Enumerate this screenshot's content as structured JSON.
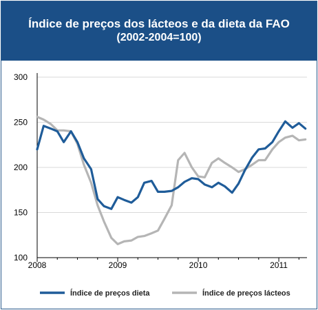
{
  "header": {
    "title": "Índice de preços dos lácteos e da dieta da FAO",
    "subtitle": "(2002-2004=100)"
  },
  "colors": {
    "header_bg": "#1b4f87",
    "diet": "#1f5c99",
    "dairy": "#b5b5b5"
  },
  "chart_data": {
    "type": "line",
    "title": "Índice de preços dos lácteos e da dieta da FAO",
    "subtitle": "(2002-2004=100)",
    "x_tick_labels": [
      "2008",
      "2009",
      "2010",
      "2011"
    ],
    "y_tick_labels": [
      "100",
      "150",
      "200",
      "250",
      "300"
    ],
    "x_unit": "year (fractional)",
    "xlim": [
      2008.0,
      2011.35
    ],
    "ylim": [
      100,
      300
    ],
    "grid": "horizontal",
    "legend_position": "bottom",
    "series": [
      {
        "name": "Índice de preços dieta",
        "color": "#1f5c99",
        "x": [
          2008.0,
          2008.08,
          2008.17,
          2008.25,
          2008.33,
          2008.42,
          2008.5,
          2008.58,
          2008.67,
          2008.75,
          2008.83,
          2008.92,
          2009.0,
          2009.08,
          2009.17,
          2009.25,
          2009.33,
          2009.42,
          2009.5,
          2009.58,
          2009.67,
          2009.75,
          2009.83,
          2009.92,
          2010.0,
          2010.08,
          2010.17,
          2010.25,
          2010.33,
          2010.42,
          2010.5,
          2010.58,
          2010.67,
          2010.75,
          2010.83,
          2010.92,
          2011.0,
          2011.08,
          2011.17,
          2011.25,
          2011.33
        ],
        "values": [
          220,
          246,
          243,
          240,
          228,
          240,
          228,
          210,
          198,
          165,
          157,
          154,
          167,
          164,
          161,
          167,
          183,
          185,
          173,
          173,
          174,
          178,
          184,
          188,
          187,
          181,
          178,
          183,
          179,
          172,
          182,
          197,
          211,
          220,
          221,
          228,
          240,
          251,
          244,
          249,
          243
        ]
      },
      {
        "name": "Índice de preços lácteos",
        "color": "#b5b5b5",
        "x": [
          2008.0,
          2008.08,
          2008.17,
          2008.25,
          2008.33,
          2008.42,
          2008.5,
          2008.58,
          2008.67,
          2008.75,
          2008.83,
          2008.92,
          2009.0,
          2009.08,
          2009.17,
          2009.25,
          2009.33,
          2009.42,
          2009.5,
          2009.58,
          2009.67,
          2009.75,
          2009.83,
          2009.92,
          2010.0,
          2010.08,
          2010.17,
          2010.25,
          2010.33,
          2010.42,
          2010.5,
          2010.58,
          2010.67,
          2010.75,
          2010.83,
          2010.92,
          2011.0,
          2011.08,
          2011.17,
          2011.25,
          2011.33
        ],
        "values": [
          256,
          253,
          248,
          241,
          241,
          240,
          226,
          203,
          183,
          158,
          140,
          122,
          115,
          118,
          119,
          123,
          124,
          127,
          130,
          143,
          158,
          208,
          216,
          200,
          190,
          189,
          205,
          210,
          205,
          200,
          195,
          198,
          203,
          208,
          208,
          220,
          228,
          233,
          235,
          230,
          231
        ]
      }
    ]
  }
}
